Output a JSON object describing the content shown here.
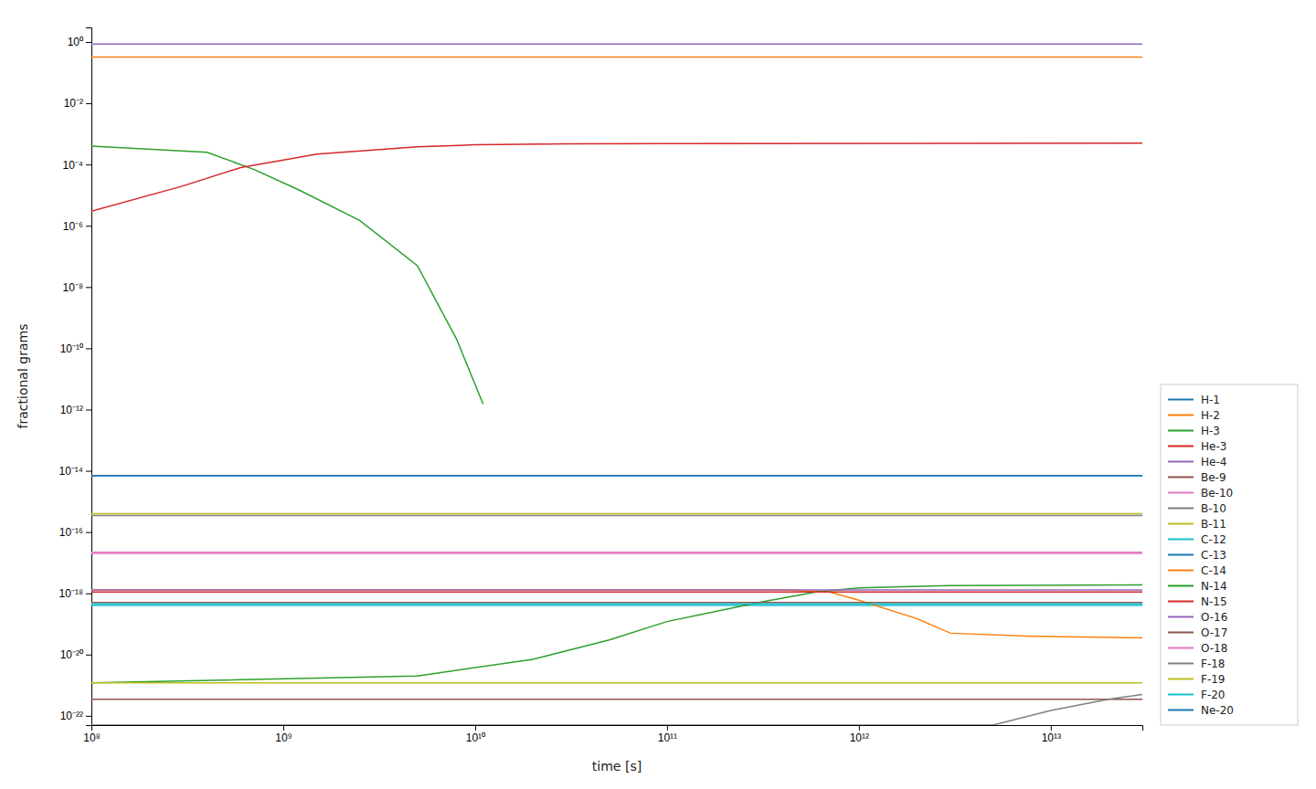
{
  "chart_data": {
    "type": "line",
    "log": true,
    "grid": false,
    "legend": "lower right",
    "xlabel": "time [s]",
    "ylabel": "fractional grams",
    "xlim": [
      100000000.0,
      30000000000000.0
    ],
    "ylim": [
      5e-23,
      3
    ],
    "xticks": [
      {
        "value": 100000000.0,
        "label": "10⁸"
      },
      {
        "value": 1000000000.0,
        "label": "10⁹"
      },
      {
        "value": 10000000000.0,
        "label": "10¹⁰"
      },
      {
        "value": 100000000000.0,
        "label": "10¹¹"
      },
      {
        "value": 1000000000000.0,
        "label": "10¹²"
      },
      {
        "value": 10000000000000.0,
        "label": "10¹³"
      }
    ],
    "yticks": [
      {
        "value": 1e-22,
        "label": "10⁻²²"
      },
      {
        "value": 1e-20,
        "label": "10⁻²⁰"
      },
      {
        "value": 1e-18,
        "label": "10⁻¹⁸"
      },
      {
        "value": 1e-16,
        "label": "10⁻¹⁶"
      },
      {
        "value": 1e-14,
        "label": "10⁻¹⁴"
      },
      {
        "value": 1e-12,
        "label": "10⁻¹²"
      },
      {
        "value": 1e-10,
        "label": "10⁻¹⁰"
      },
      {
        "value": 1e-08,
        "label": "10⁻⁸"
      },
      {
        "value": 1e-06,
        "label": "10⁻⁶"
      },
      {
        "value": 0.0001,
        "label": "10⁻⁴"
      },
      {
        "value": 0.01,
        "label": "10⁻²"
      },
      {
        "value": 1,
        "label": "10⁰"
      }
    ],
    "series": [
      {
        "name": "H-1",
        "color": "#1f77b4",
        "x": [
          100000000.0,
          30000000000000.0
        ],
        "values": [
          7e-15,
          7e-15
        ]
      },
      {
        "name": "H-2",
        "color": "#ff7f0e",
        "x": [
          100000000.0,
          30000000000000.0
        ],
        "values": [
          0.32,
          0.32
        ]
      },
      {
        "name": "H-3",
        "color": "#2ca02c",
        "x": [
          100000000.0,
          400000000.0,
          700000000.0,
          1200000000.0,
          2500000000.0,
          5000000000.0,
          8000000000.0,
          11000000000.0
        ],
        "values": [
          0.0004,
          0.00025,
          7e-05,
          1.5e-05,
          1.5e-06,
          5e-08,
          2e-10,
          1.5e-12
        ]
      },
      {
        "name": "He-3",
        "color": "#d62728",
        "x": [
          100000000.0,
          300000000.0,
          600000000.0,
          1500000000.0,
          5000000000.0,
          10000000000.0,
          30000000000.0,
          100000000000.0,
          30000000000000.0
        ],
        "values": [
          3e-06,
          2e-05,
          8e-05,
          0.00022,
          0.00038,
          0.00044,
          0.00047,
          0.00048,
          0.0005
        ]
      },
      {
        "name": "He-4",
        "color": "#9467bd",
        "x": [
          100000000.0,
          30000000000000.0
        ],
        "values": [
          0.85,
          0.85
        ]
      },
      {
        "name": "Be-9",
        "color": "#8c564b",
        "x": [
          100000000.0,
          30000000000000.0
        ],
        "values": [
          3.5e-22,
          3.5e-22
        ]
      },
      {
        "name": "Be-10",
        "color": "#e377c2",
        "x": [
          100000000.0,
          30000000000000.0
        ],
        "values": [
          2.2e-17,
          2.2e-17
        ]
      },
      {
        "name": "B-10",
        "color": "#7f7f7f",
        "x": [
          100000000.0,
          30000000000000.0
        ],
        "values": [
          3.5e-16,
          3.5e-16
        ]
      },
      {
        "name": "B-11",
        "color": "#bcbd22",
        "x": [
          100000000.0,
          30000000000000.0
        ],
        "values": [
          4e-16,
          4e-16
        ]
      },
      {
        "name": "C-12",
        "color": "#17becf",
        "x": [
          100000000.0,
          30000000000000.0
        ],
        "values": [
          4e-19,
          4e-19
        ]
      },
      {
        "name": "C-13",
        "color": "#1f77b4",
        "x": [
          100000000.0,
          30000000000000.0
        ],
        "values": [
          7e-15,
          7e-15
        ]
      },
      {
        "name": "C-14",
        "color": "#ff7f0e",
        "x": [
          100000000.0,
          400000000000.0,
          700000000000.0,
          1000000000000.0,
          2000000000000.0,
          3000000000000.0,
          8000000000000.0,
          30000000000000.0
        ],
        "values": [
          1.3e-18,
          1.3e-18,
          1.1e-18,
          6e-19,
          1.5e-19,
          5e-20,
          4e-20,
          3.5e-20
        ]
      },
      {
        "name": "N-14",
        "color": "#2ca02c",
        "x": [
          100000000.0,
          5000000000.0,
          20000000000.0,
          50000000000.0,
          100000000000.0,
          300000000000.0,
          600000000000.0,
          1000000000000.0,
          3000000000000.0,
          30000000000000.0
        ],
        "values": [
          1.2e-21,
          2e-21,
          7e-21,
          3e-20,
          1.2e-19,
          5e-19,
          1.1e-18,
          1.5e-18,
          1.8e-18,
          1.9e-18
        ]
      },
      {
        "name": "N-15",
        "color": "#d62728",
        "x": [
          100000000.0,
          30000000000000.0
        ],
        "values": [
          1.1e-18,
          1.1e-18
        ]
      },
      {
        "name": "O-16",
        "color": "#9467bd",
        "x": [
          100000000.0,
          30000000000000.0
        ],
        "values": [
          1.3e-18,
          1.3e-18
        ]
      },
      {
        "name": "O-17",
        "color": "#8c564b",
        "x": [
          100000000.0,
          30000000000000.0
        ],
        "values": [
          5e-19,
          5e-19
        ]
      },
      {
        "name": "O-18",
        "color": "#e377c2",
        "x": [
          100000000.0,
          30000000000000.0
        ],
        "values": [
          2e-17,
          2e-17
        ]
      },
      {
        "name": "F-18",
        "color": "#7f7f7f",
        "x": [
          100000000.0,
          5000000000000.0,
          10000000000000.0,
          20000000000000.0,
          30000000000000.0
        ],
        "values": [
          5e-23,
          5e-23,
          1.5e-22,
          3.5e-22,
          5e-22
        ]
      },
      {
        "name": "F-19",
        "color": "#bcbd22",
        "x": [
          100000000.0,
          30000000000000.0
        ],
        "values": [
          1.2e-21,
          1.2e-21
        ]
      },
      {
        "name": "F-20",
        "color": "#17becf",
        "x": [
          100000000.0,
          30000000000000.0
        ],
        "values": [
          4.5e-19,
          4.5e-19
        ]
      },
      {
        "name": "Ne-20",
        "color": "#1f77b4",
        "x": [
          100000000.0,
          30000000000000.0
        ],
        "values": [
          7e-15,
          7e-15
        ]
      }
    ]
  }
}
